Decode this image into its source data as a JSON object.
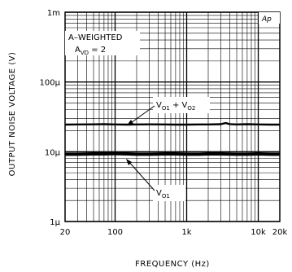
{
  "chart_data": {
    "type": "line",
    "xlabel": "FREQUENCY (Hz)",
    "ylabel": "OUTPUT NOISE VOLTAGE (V)",
    "x_scale": "log",
    "y_scale": "log",
    "xlim": [
      20,
      20000
    ],
    "ylim": [
      1e-06,
      0.001
    ],
    "x_tick_labels": [
      {
        "value": 20,
        "label": "20"
      },
      {
        "value": 100,
        "label": "100"
      },
      {
        "value": 1000,
        "label": "1k"
      },
      {
        "value": 10000,
        "label": "10k"
      },
      {
        "value": 20000,
        "label": "20k"
      }
    ],
    "y_tick_labels": [
      {
        "value": 0.001,
        "label": "1m"
      },
      {
        "value": 0.0001,
        "label": "100μ"
      },
      {
        "value": 1e-05,
        "label": "10μ"
      },
      {
        "value": 1e-06,
        "label": "1μ"
      }
    ],
    "grid": true,
    "annotations": {
      "weighting": "A–WEIGHTED",
      "gain_prefix": "A",
      "gain_sub": "VD",
      "gain_value": " = 2",
      "brand": "Ap"
    },
    "series": [
      {
        "label_parts": [
          "V",
          "O1",
          " + V",
          "O2"
        ],
        "x": [
          20,
          30,
          50,
          70,
          100,
          150,
          200,
          300,
          500,
          700,
          1000,
          1500,
          2000,
          3000,
          3500,
          4000,
          5000,
          7000,
          10000,
          15000,
          20000
        ],
        "y": [
          2.45e-05,
          2.46e-05,
          2.47e-05,
          2.48e-05,
          2.46e-05,
          2.45e-05,
          2.46e-05,
          2.47e-05,
          2.46e-05,
          2.45e-05,
          2.45e-05,
          2.46e-05,
          2.46e-05,
          2.48e-05,
          2.58e-05,
          2.49e-05,
          2.46e-05,
          2.48e-05,
          2.46e-05,
          2.45e-05,
          2.45e-05
        ]
      },
      {
        "label_parts": [
          "V",
          "O1"
        ],
        "x": [
          20,
          30,
          50,
          70,
          100,
          150,
          200,
          300,
          500,
          700,
          1000,
          1500,
          2000,
          3000,
          5000,
          7000,
          10000,
          15000,
          20000
        ],
        "y": [
          9.2e-06,
          9.2e-06,
          9.3e-06,
          9.3e-06,
          9.4e-06,
          9.3e-06,
          9.2e-06,
          9.2e-06,
          9.3e-06,
          9.3e-06,
          9.2e-06,
          9.2e-06,
          9.3e-06,
          9.3e-06,
          9.2e-06,
          9.2e-06,
          9.3e-06,
          9.2e-06,
          9.2e-06
        ]
      }
    ]
  }
}
